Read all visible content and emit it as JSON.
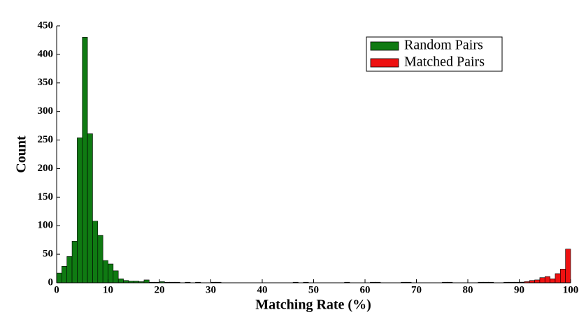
{
  "chart_data": {
    "type": "histogram",
    "x_label": "Matching Rate (%)",
    "y_label": "Count",
    "bins": [
      0,
      1,
      2,
      3,
      4,
      5,
      6,
      7,
      8,
      9,
      10,
      11,
      12,
      13,
      14,
      15,
      16,
      17,
      18,
      19,
      20,
      21,
      22,
      23,
      24,
      25,
      26,
      27,
      28,
      29,
      30,
      31,
      32,
      33,
      34,
      35,
      36,
      37,
      38,
      39,
      40,
      41,
      42,
      43,
      44,
      45,
      46,
      47,
      48,
      49,
      50,
      51,
      52,
      53,
      54,
      55,
      56,
      57,
      58,
      59,
      60,
      61,
      62,
      63,
      64,
      65,
      66,
      67,
      68,
      69,
      70,
      71,
      72,
      73,
      74,
      75,
      76,
      77,
      78,
      79,
      80,
      81,
      82,
      83,
      84,
      85,
      86,
      87,
      88,
      89,
      90,
      91,
      92,
      93,
      94,
      95,
      96,
      97,
      98,
      99,
      100
    ],
    "series": [
      {
        "name": "Random Pairs",
        "color": "#0f7a12",
        "values": [
          17,
          29,
          46,
          73,
          254,
          430,
          261,
          108,
          83,
          39,
          33,
          21,
          7,
          4,
          3,
          3,
          2,
          5,
          1,
          1,
          2,
          1,
          1,
          1,
          0,
          1,
          0,
          1,
          0,
          0,
          1,
          1,
          0,
          0,
          0,
          0,
          0,
          0,
          0,
          0,
          0,
          0,
          0,
          0,
          0,
          0,
          1,
          0,
          1,
          0,
          0,
          0,
          0,
          0,
          0,
          0,
          1,
          0,
          0,
          0,
          0,
          1,
          1,
          0,
          0,
          0,
          0,
          1,
          1,
          0,
          0,
          0,
          0,
          0,
          0,
          1,
          1,
          0,
          0,
          0,
          0,
          0,
          1,
          1,
          1,
          0,
          0,
          1,
          1,
          1,
          1,
          0,
          0,
          0,
          0,
          0,
          0,
          0,
          0,
          0
        ]
      },
      {
        "name": "Matched Pairs",
        "color": "#ee1111",
        "values": [
          0,
          0,
          0,
          0,
          0,
          0,
          0,
          0,
          0,
          0,
          0,
          0,
          0,
          0,
          0,
          0,
          0,
          0,
          0,
          0,
          0,
          0,
          0,
          0,
          0,
          0,
          0,
          0,
          0,
          0,
          0,
          0,
          0,
          0,
          0,
          0,
          0,
          0,
          0,
          0,
          0,
          0,
          0,
          0,
          0,
          0,
          0,
          0,
          0,
          0,
          0,
          0,
          0,
          0,
          0,
          0,
          0,
          0,
          0,
          0,
          0,
          0,
          0,
          0,
          0,
          0,
          0,
          0,
          0,
          0,
          0,
          0,
          0,
          0,
          0,
          0,
          0,
          0,
          0,
          0,
          0,
          0,
          0,
          0,
          0,
          0,
          0,
          0,
          0,
          0,
          1,
          2,
          4,
          5,
          9,
          11,
          7,
          16,
          24,
          59
        ]
      }
    ],
    "xlim": [
      0,
      100
    ],
    "ylim": [
      0,
      450
    ],
    "xticks": [
      0,
      10,
      20,
      30,
      40,
      50,
      60,
      70,
      80,
      90,
      100
    ],
    "yticks": [
      0,
      50,
      100,
      150,
      200,
      250,
      300,
      350,
      400,
      450
    ],
    "legend": "upper right"
  }
}
